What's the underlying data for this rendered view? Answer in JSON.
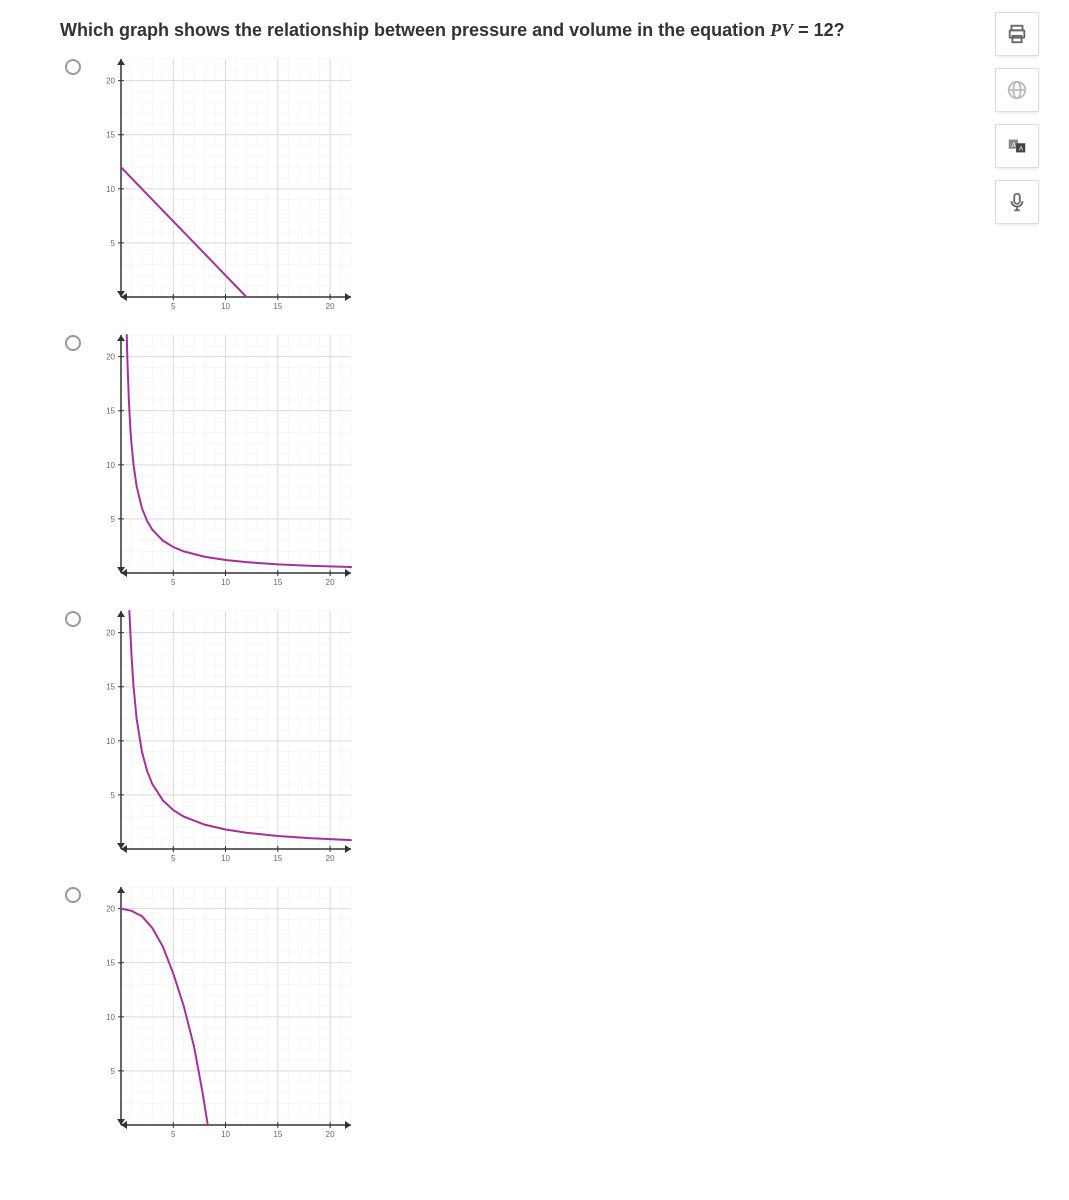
{
  "question": {
    "prefix": "Which graph shows the relationship between pressure and volume in the equation ",
    "equation_lhs": "PV",
    "equation_eq": " = ",
    "equation_rhs": "12",
    "suffix": "?"
  },
  "chart_common": {
    "xlim": [
      0,
      22
    ],
    "ylim": [
      0,
      22
    ],
    "xticks": [
      5,
      10,
      15,
      20
    ],
    "yticks": [
      5,
      10,
      15,
      20
    ],
    "tick_labels_x": [
      "5",
      "10",
      "15",
      "20"
    ],
    "tick_labels_y": [
      "5",
      "10",
      "15",
      "20"
    ],
    "minor_step": 1,
    "tick_fontsize": 8,
    "background_color": "#ffffff",
    "major_grid_color": "#d9d9d9",
    "minor_grid_color": "#efefef",
    "axis_color": "#333333",
    "curve_color": "#a6309a",
    "curve_width": 2
  },
  "options": [
    {
      "id": "a",
      "curve_type": "line",
      "points": [
        [
          0,
          12
        ],
        [
          12,
          0
        ]
      ]
    },
    {
      "id": "b",
      "curve_type": "curve",
      "points": [
        [
          0.55,
          22
        ],
        [
          0.6,
          20
        ],
        [
          0.75,
          16
        ],
        [
          0.9,
          13.3
        ],
        [
          1.0,
          12
        ],
        [
          1.2,
          10
        ],
        [
          1.5,
          8
        ],
        [
          2,
          6
        ],
        [
          2.5,
          4.8
        ],
        [
          3,
          4
        ],
        [
          4,
          3
        ],
        [
          5,
          2.4
        ],
        [
          6,
          2
        ],
        [
          8,
          1.5
        ],
        [
          10,
          1.2
        ],
        [
          12,
          1
        ],
        [
          15,
          0.8
        ],
        [
          18,
          0.67
        ],
        [
          22,
          0.55
        ]
      ]
    },
    {
      "id": "c",
      "curve_type": "curve",
      "points": [
        [
          0.8,
          22
        ],
        [
          0.9,
          20
        ],
        [
          1.0,
          18
        ],
        [
          1.2,
          15
        ],
        [
          1.5,
          12
        ],
        [
          2,
          9
        ],
        [
          2.5,
          7.2
        ],
        [
          3,
          6
        ],
        [
          4,
          4.5
        ],
        [
          5,
          3.6
        ],
        [
          6,
          3
        ],
        [
          8,
          2.25
        ],
        [
          10,
          1.8
        ],
        [
          12,
          1.5
        ],
        [
          15,
          1.2
        ],
        [
          18,
          1.0
        ],
        [
          22,
          0.82
        ]
      ]
    },
    {
      "id": "d",
      "curve_type": "curve",
      "points": [
        [
          0,
          20
        ],
        [
          1,
          19.8
        ],
        [
          2,
          19.3
        ],
        [
          3,
          18.2
        ],
        [
          4,
          16.5
        ],
        [
          5,
          14
        ],
        [
          6,
          11
        ],
        [
          7,
          7.2
        ],
        [
          7.8,
          3
        ],
        [
          8.3,
          0
        ]
      ]
    }
  ],
  "toolbar": {
    "buttons": [
      {
        "name": "print-icon"
      },
      {
        "name": "globe-icon"
      },
      {
        "name": "language-icon"
      },
      {
        "name": "microphone-icon"
      }
    ]
  }
}
